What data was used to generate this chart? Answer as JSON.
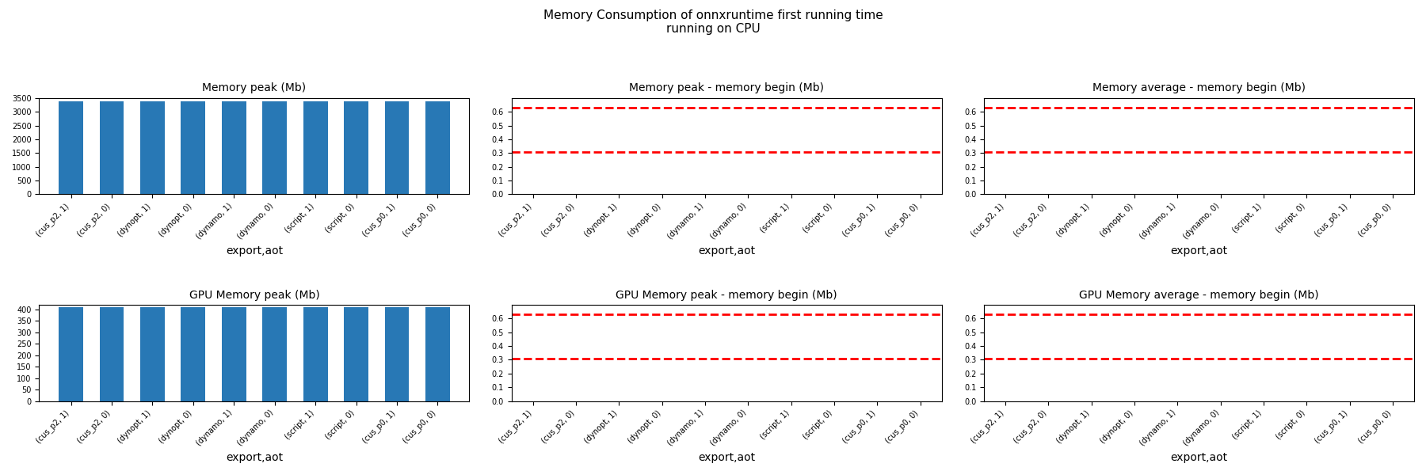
{
  "suptitle": "Memory Consumption of onnxruntime first running time\nrunning on CPU",
  "categories": [
    "(cus_p2, 1)",
    "(cus_p2, 0)",
    "(dynopt, 1)",
    "(dynopt, 0)",
    "(dynamo, 1)",
    "(dynamo, 0)",
    "(script, 1)",
    "(script, 0)",
    "(cus_p0, 1)",
    "(cus_p0, 0)"
  ],
  "xlabel": "export,aot",
  "bar_color": "#2878b5",
  "memory_peak_values": [
    3365,
    3365,
    3365,
    3365,
    3380,
    3380,
    3380,
    3380,
    3380,
    3380
  ],
  "gpu_memory_peak_values": [
    410,
    410,
    410,
    410,
    410,
    410,
    410,
    410,
    410,
    410
  ],
  "dashed_line_upper": 0.63,
  "dashed_line_lower": 0.31,
  "dashed_color": "red",
  "dashed_style": "--",
  "dashed_linewidth": 2.0,
  "subplot_titles": [
    "Memory peak (Mb)",
    "Memory peak - memory begin (Mb)",
    "Memory average - memory begin (Mb)",
    "GPU Memory peak (Mb)",
    "GPU Memory peak - memory begin (Mb)",
    "GPU Memory average - memory begin (Mb)"
  ],
  "memory_peak_ylim": [
    0,
    3500
  ],
  "gpu_memory_peak_ylim": [
    0,
    420
  ],
  "flat_ylim": [
    0.0,
    0.7
  ],
  "flat_yticks": [
    0.0,
    0.1,
    0.2,
    0.3,
    0.4,
    0.5,
    0.6
  ],
  "memory_peak_yticks": [
    0,
    500,
    1000,
    1500,
    2000,
    2500,
    3000,
    3500
  ],
  "gpu_memory_peak_yticks": [
    0,
    50,
    100,
    150,
    200,
    250,
    300,
    350,
    400
  ],
  "tick_fontsize": 7,
  "title_fontsize": 10,
  "xlabel_fontsize": 10,
  "suptitle_fontsize": 11
}
